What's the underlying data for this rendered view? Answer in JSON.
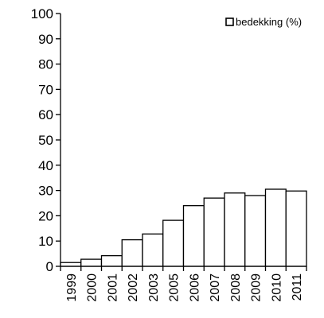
{
  "chart_data": {
    "type": "bar",
    "categories": [
      "1999",
      "2000",
      "2001",
      "2002",
      "2003",
      "2005",
      "2006",
      "2007",
      "2008",
      "2009",
      "2010",
      "2011"
    ],
    "series": [
      {
        "name": "bedekking (%)",
        "values": [
          1.5,
          2.8,
          4.2,
          10.5,
          12.8,
          18.2,
          24,
          27,
          29,
          28,
          30.5,
          29.8
        ]
      }
    ],
    "ylim": [
      0,
      100
    ],
    "yticks": [
      0,
      10,
      20,
      30,
      40,
      50,
      60,
      70,
      80,
      90,
      100
    ],
    "legend": {
      "label": "bedekking (%)",
      "position": "top-right"
    },
    "colors": {
      "bar_fill": "#ffffff",
      "bar_stroke": "#000000",
      "axis": "#000000"
    },
    "grid": false
  }
}
